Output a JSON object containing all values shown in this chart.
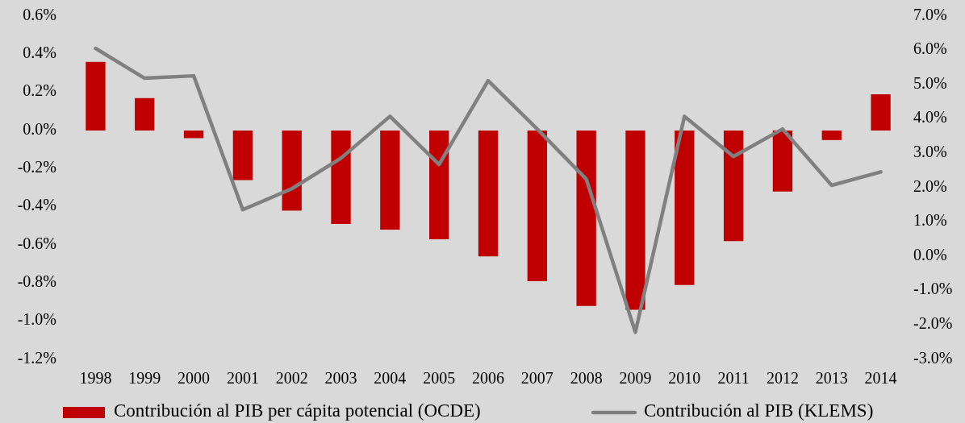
{
  "chart_data": {
    "type": "bar",
    "categories": [
      "1998",
      "1999",
      "2000",
      "2001",
      "2002",
      "2003",
      "2004",
      "2005",
      "2006",
      "2007",
      "2008",
      "2009",
      "2010",
      "2011",
      "2012",
      "2013",
      "2014"
    ],
    "series": [
      {
        "name": "Contribución al PIB per cápita potencial (OCDE)",
        "color": "#c00000",
        "values": [
          0.36,
          0.17,
          -0.04,
          -0.26,
          -0.42,
          -0.49,
          -0.52,
          -0.57,
          -0.66,
          -0.79,
          -0.92,
          -0.94,
          -0.81,
          -0.58,
          -0.32,
          -0.05,
          0.19
        ]
      },
      {
        "name": "Contribución al PIB (KLEMS)",
        "type": "line",
        "axis": "y2",
        "color": "#808080",
        "values": [
          6.06,
          5.19,
          5.26,
          1.36,
          1.97,
          2.86,
          4.08,
          2.68,
          5.12,
          3.71,
          2.25,
          -2.21,
          4.08,
          2.91,
          3.71,
          2.07,
          2.46
        ]
      }
    ],
    "ylim": [
      -1.2,
      0.6
    ],
    "yticks": [
      {
        "value": -1.2,
        "label": "-1.2%"
      },
      {
        "value": -1.0,
        "label": "-1.0%"
      },
      {
        "value": -0.8,
        "label": "-0.8%"
      },
      {
        "value": -0.6,
        "label": "-0.6%"
      },
      {
        "value": -0.4,
        "label": "-0.4%"
      },
      {
        "value": -0.2,
        "label": "-0.2%"
      },
      {
        "value": 0,
        "label": "0.0%"
      },
      {
        "value": 0.2,
        "label": "0.2%"
      },
      {
        "value": 0.4,
        "label": "0.4%"
      },
      {
        "value": 0.6,
        "label": "0.6%"
      }
    ],
    "y2lim": [
      -3,
      7
    ],
    "y2ticks": [
      {
        "value": -3,
        "label": "-3.0%"
      },
      {
        "value": -2,
        "label": "-2.0%"
      },
      {
        "value": -1,
        "label": "-1.0%"
      },
      {
        "value": 0,
        "label": "0.0%"
      },
      {
        "value": 1,
        "label": "1.0%"
      },
      {
        "value": 2,
        "label": "2.0%"
      },
      {
        "value": 3,
        "label": "3.0%"
      },
      {
        "value": 4,
        "label": "4.0%"
      },
      {
        "value": 5,
        "label": "5.0%"
      },
      {
        "value": 6,
        "label": "6.0%"
      },
      {
        "value": 7,
        "label": "7.0%"
      }
    ],
    "legend": "bottom",
    "grid": false
  }
}
